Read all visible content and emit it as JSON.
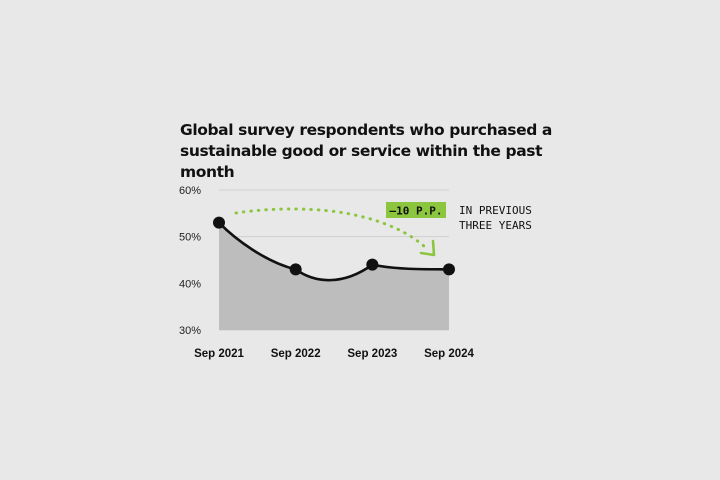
{
  "chart_data": {
    "type": "line",
    "title_lines": [
      "Global survey respondents who purchased a",
      "sustainable good or service within the past month"
    ],
    "x": [
      "Sep 2021",
      "Sep 2022",
      "Sep 2023",
      "Sep 2024"
    ],
    "values": [
      53,
      43,
      44,
      43
    ],
    "ylim": [
      30,
      60
    ],
    "yticks": [
      "30%",
      "40%",
      "50%",
      "60%"
    ],
    "grid": true,
    "colors": {
      "line": "#111111",
      "area": "#bdbdbd",
      "accent": "#8cc63f"
    },
    "annotation": {
      "badge": "–10 P.P.",
      "note_lines": [
        "IN PREVIOUS",
        "THREE YEARS"
      ]
    }
  }
}
